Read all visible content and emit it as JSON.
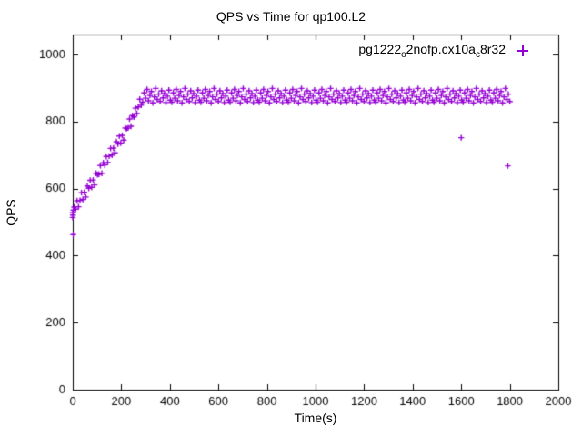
{
  "title": "QPS vs Time for qp100.L2",
  "legend": {
    "parts": [
      {
        "text": "pg1222"
      },
      {
        "text": "o",
        "sub": true
      },
      {
        "text": "2nofp.cx10a"
      },
      {
        "text": "c",
        "sub": true
      },
      {
        "text": "8r32"
      }
    ]
  },
  "chart_data": {
    "type": "scatter",
    "title": "QPS vs Time for qp100.L2",
    "xlabel": "Time(s)",
    "ylabel": "QPS",
    "xlim": [
      0,
      2000
    ],
    "ylim": [
      0,
      1060
    ],
    "xticks": [
      0,
      200,
      400,
      600,
      800,
      1000,
      1200,
      1400,
      1600,
      1800,
      2000
    ],
    "yticks": [
      0,
      200,
      400,
      600,
      800,
      1000
    ],
    "grid": false,
    "legend_position": "top-right",
    "marker": "plus",
    "color": "#9400D3",
    "series": [
      {
        "name": "pg1222_o2nofp.cx10a_c8r32",
        "points": [
          [
            2,
            463
          ],
          [
            0,
            528
          ],
          [
            1,
            521
          ],
          [
            3,
            536
          ],
          [
            0,
            514
          ],
          [
            6,
            545
          ],
          [
            12,
            539
          ],
          [
            18,
            564
          ],
          [
            24,
            546
          ],
          [
            30,
            565
          ],
          [
            36,
            588
          ],
          [
            42,
            568
          ],
          [
            48,
            589
          ],
          [
            54,
            575
          ],
          [
            60,
            608
          ],
          [
            66,
            601
          ],
          [
            72,
            625
          ],
          [
            78,
            604
          ],
          [
            84,
            626
          ],
          [
            90,
            611
          ],
          [
            96,
            646
          ],
          [
            102,
            642
          ],
          [
            108,
            643
          ],
          [
            114,
            669
          ],
          [
            120,
            646
          ],
          [
            126,
            677
          ],
          [
            132,
            671
          ],
          [
            138,
            696
          ],
          [
            144,
            678
          ],
          [
            150,
            697
          ],
          [
            156,
            720
          ],
          [
            162,
            700
          ],
          [
            168,
            721
          ],
          [
            174,
            707
          ],
          [
            180,
            740
          ],
          [
            186,
            733
          ],
          [
            192,
            757
          ],
          [
            198,
            736
          ],
          [
            204,
            759
          ],
          [
            210,
            745
          ],
          [
            216,
            781
          ],
          [
            222,
            779
          ],
          [
            228,
            781
          ],
          [
            234,
            808
          ],
          [
            240,
            786
          ],
          [
            246,
            818
          ],
          [
            252,
            814
          ],
          [
            258,
            840
          ],
          [
            264,
            824
          ],
          [
            270,
            844
          ],
          [
            276,
            867
          ],
          [
            282,
            849
          ],
          [
            288,
            858
          ],
          [
            294,
            886
          ],
          [
            300,
            870
          ],
          [
            306,
            896
          ],
          [
            312,
            862
          ],
          [
            318,
            878
          ],
          [
            324,
            890
          ],
          [
            330,
            856
          ],
          [
            336,
            874
          ],
          [
            342,
            899
          ],
          [
            348,
            866
          ],
          [
            354,
            882
          ],
          [
            360,
            860
          ],
          [
            366,
            892
          ],
          [
            372,
            871
          ],
          [
            378,
            884
          ],
          [
            384,
            857
          ],
          [
            390,
            876
          ],
          [
            396,
            894
          ],
          [
            402,
            864
          ],
          [
            408,
            858
          ],
          [
            414,
            886
          ],
          [
            420,
            870
          ],
          [
            426,
            896
          ],
          [
            432,
            862
          ],
          [
            438,
            878
          ],
          [
            444,
            890
          ],
          [
            450,
            856
          ],
          [
            456,
            874
          ],
          [
            462,
            899
          ],
          [
            468,
            866
          ],
          [
            474,
            882
          ],
          [
            480,
            860
          ],
          [
            486,
            892
          ],
          [
            492,
            871
          ],
          [
            498,
            884
          ],
          [
            504,
            857
          ],
          [
            510,
            876
          ],
          [
            516,
            894
          ],
          [
            522,
            864
          ],
          [
            528,
            858
          ],
          [
            534,
            886
          ],
          [
            540,
            870
          ],
          [
            546,
            896
          ],
          [
            552,
            862
          ],
          [
            558,
            878
          ],
          [
            564,
            890
          ],
          [
            570,
            856
          ],
          [
            576,
            874
          ],
          [
            582,
            899
          ],
          [
            588,
            866
          ],
          [
            594,
            882
          ],
          [
            600,
            860
          ],
          [
            606,
            892
          ],
          [
            612,
            871
          ],
          [
            618,
            884
          ],
          [
            624,
            857
          ],
          [
            630,
            876
          ],
          [
            636,
            894
          ],
          [
            642,
            864
          ],
          [
            648,
            858
          ],
          [
            654,
            886
          ],
          [
            660,
            870
          ],
          [
            666,
            896
          ],
          [
            672,
            862
          ],
          [
            678,
            878
          ],
          [
            684,
            890
          ],
          [
            690,
            856
          ],
          [
            696,
            874
          ],
          [
            702,
            899
          ],
          [
            708,
            866
          ],
          [
            714,
            882
          ],
          [
            720,
            860
          ],
          [
            726,
            892
          ],
          [
            732,
            871
          ],
          [
            738,
            884
          ],
          [
            744,
            857
          ],
          [
            750,
            876
          ],
          [
            756,
            894
          ],
          [
            762,
            864
          ],
          [
            768,
            858
          ],
          [
            774,
            886
          ],
          [
            780,
            870
          ],
          [
            786,
            896
          ],
          [
            792,
            862
          ],
          [
            798,
            878
          ],
          [
            804,
            890
          ],
          [
            810,
            856
          ],
          [
            816,
            874
          ],
          [
            822,
            899
          ],
          [
            828,
            866
          ],
          [
            834,
            882
          ],
          [
            840,
            860
          ],
          [
            846,
            892
          ],
          [
            852,
            871
          ],
          [
            858,
            884
          ],
          [
            864,
            857
          ],
          [
            870,
            876
          ],
          [
            876,
            894
          ],
          [
            882,
            864
          ],
          [
            888,
            858
          ],
          [
            894,
            886
          ],
          [
            900,
            870
          ],
          [
            906,
            896
          ],
          [
            912,
            862
          ],
          [
            918,
            878
          ],
          [
            924,
            890
          ],
          [
            930,
            856
          ],
          [
            936,
            874
          ],
          [
            942,
            899
          ],
          [
            948,
            866
          ],
          [
            954,
            882
          ],
          [
            960,
            860
          ],
          [
            966,
            892
          ],
          [
            972,
            871
          ],
          [
            978,
            884
          ],
          [
            984,
            857
          ],
          [
            990,
            876
          ],
          [
            996,
            894
          ],
          [
            1002,
            864
          ],
          [
            1008,
            858
          ],
          [
            1014,
            886
          ],
          [
            1020,
            870
          ],
          [
            1026,
            896
          ],
          [
            1032,
            862
          ],
          [
            1038,
            878
          ],
          [
            1044,
            890
          ],
          [
            1050,
            856
          ],
          [
            1056,
            874
          ],
          [
            1062,
            899
          ],
          [
            1068,
            866
          ],
          [
            1074,
            882
          ],
          [
            1080,
            860
          ],
          [
            1086,
            892
          ],
          [
            1092,
            871
          ],
          [
            1098,
            884
          ],
          [
            1104,
            857
          ],
          [
            1110,
            876
          ],
          [
            1116,
            894
          ],
          [
            1122,
            864
          ],
          [
            1128,
            858
          ],
          [
            1134,
            886
          ],
          [
            1140,
            870
          ],
          [
            1146,
            896
          ],
          [
            1152,
            862
          ],
          [
            1158,
            878
          ],
          [
            1164,
            890
          ],
          [
            1170,
            856
          ],
          [
            1176,
            874
          ],
          [
            1182,
            899
          ],
          [
            1188,
            866
          ],
          [
            1194,
            882
          ],
          [
            1200,
            860
          ],
          [
            1206,
            892
          ],
          [
            1212,
            871
          ],
          [
            1218,
            884
          ],
          [
            1224,
            857
          ],
          [
            1230,
            876
          ],
          [
            1236,
            894
          ],
          [
            1242,
            864
          ],
          [
            1248,
            858
          ],
          [
            1254,
            886
          ],
          [
            1260,
            870
          ],
          [
            1266,
            896
          ],
          [
            1272,
            862
          ],
          [
            1278,
            878
          ],
          [
            1284,
            890
          ],
          [
            1290,
            856
          ],
          [
            1296,
            874
          ],
          [
            1302,
            899
          ],
          [
            1308,
            866
          ],
          [
            1314,
            882
          ],
          [
            1320,
            860
          ],
          [
            1326,
            892
          ],
          [
            1332,
            871
          ],
          [
            1338,
            884
          ],
          [
            1344,
            857
          ],
          [
            1350,
            876
          ],
          [
            1356,
            894
          ],
          [
            1362,
            864
          ],
          [
            1368,
            858
          ],
          [
            1374,
            886
          ],
          [
            1380,
            870
          ],
          [
            1386,
            896
          ],
          [
            1392,
            862
          ],
          [
            1398,
            878
          ],
          [
            1404,
            890
          ],
          [
            1410,
            856
          ],
          [
            1416,
            874
          ],
          [
            1422,
            899
          ],
          [
            1428,
            866
          ],
          [
            1434,
            882
          ],
          [
            1440,
            860
          ],
          [
            1446,
            892
          ],
          [
            1452,
            871
          ],
          [
            1458,
            884
          ],
          [
            1464,
            857
          ],
          [
            1470,
            876
          ],
          [
            1476,
            894
          ],
          [
            1482,
            864
          ],
          [
            1488,
            858
          ],
          [
            1494,
            886
          ],
          [
            1500,
            870
          ],
          [
            1506,
            896
          ],
          [
            1512,
            862
          ],
          [
            1518,
            878
          ],
          [
            1524,
            890
          ],
          [
            1530,
            856
          ],
          [
            1536,
            874
          ],
          [
            1542,
            899
          ],
          [
            1548,
            866
          ],
          [
            1554,
            882
          ],
          [
            1560,
            860
          ],
          [
            1566,
            892
          ],
          [
            1572,
            871
          ],
          [
            1578,
            884
          ],
          [
            1584,
            857
          ],
          [
            1590,
            876
          ],
          [
            1596,
            894
          ],
          [
            1602,
            864
          ],
          [
            1608,
            858
          ],
          [
            1614,
            886
          ],
          [
            1620,
            870
          ],
          [
            1626,
            896
          ],
          [
            1632,
            862
          ],
          [
            1638,
            878
          ],
          [
            1644,
            890
          ],
          [
            1650,
            856
          ],
          [
            1656,
            874
          ],
          [
            1662,
            899
          ],
          [
            1668,
            866
          ],
          [
            1674,
            882
          ],
          [
            1680,
            860
          ],
          [
            1686,
            892
          ],
          [
            1692,
            871
          ],
          [
            1698,
            884
          ],
          [
            1704,
            857
          ],
          [
            1710,
            876
          ],
          [
            1716,
            894
          ],
          [
            1722,
            864
          ],
          [
            1728,
            858
          ],
          [
            1734,
            886
          ],
          [
            1740,
            870
          ],
          [
            1746,
            896
          ],
          [
            1752,
            862
          ],
          [
            1758,
            878
          ],
          [
            1764,
            890
          ],
          [
            1770,
            856
          ],
          [
            1776,
            874
          ],
          [
            1782,
            899
          ],
          [
            1788,
            866
          ],
          [
            1794,
            882
          ],
          [
            1800,
            860
          ],
          [
            1600,
            752
          ],
          [
            1792,
            668
          ]
        ]
      }
    ]
  }
}
